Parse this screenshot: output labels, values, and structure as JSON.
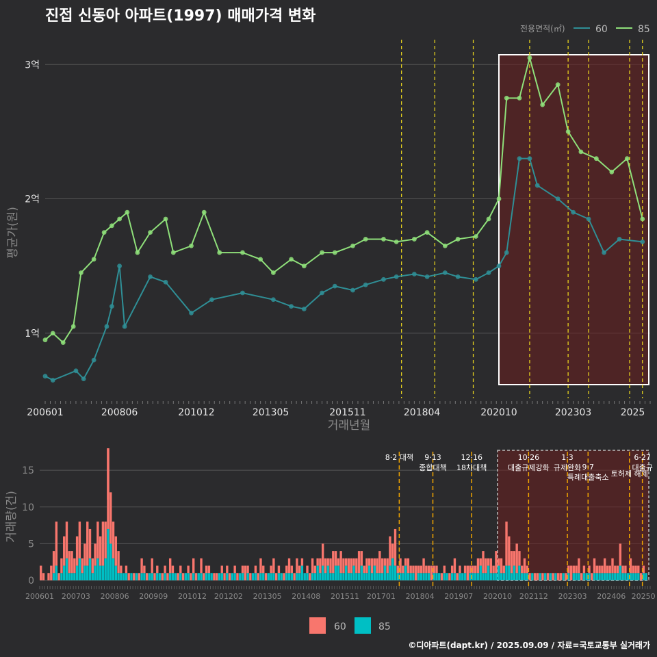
{
  "title": "진접 신동아 아파트(1997) 매매가격 변화",
  "footer": "©디아파트(dapt.kr) / 2025.09.09 / 자료=국토교통부 실거래가",
  "colors": {
    "s60": "#2f8f96",
    "s85": "#8fe07a",
    "bar60": "#f8766d",
    "bar85": "#00bfc4",
    "policy": "#e6d21e",
    "policyBar": "#f0a500",
    "highlight": "#6b1f1f"
  },
  "chart_data": [
    {
      "type": "line",
      "xlabel": "거래년월",
      "ylabel": "평균가(원)",
      "x_range": [
        "2006-01",
        "2025-09"
      ],
      "ylim": [
        0.5,
        3.2
      ],
      "yticks": [
        {
          "v": 1,
          "label": "1억"
        },
        {
          "v": 2,
          "label": "2억"
        },
        {
          "v": 3,
          "label": "3억"
        }
      ],
      "xticks": [
        "200601",
        "200806",
        "201012",
        "201305",
        "201511",
        "201804",
        "202010",
        "202303",
        "2025"
      ],
      "legend_title": "전용면적(㎡)",
      "legend_position": "top-right",
      "highlight_range": [
        "2020-10",
        "2025-09"
      ],
      "policy_lines": [
        "2017-08",
        "2018-09",
        "2019-12",
        "2021-10",
        "2023-01",
        "2023-09",
        "2025-01",
        "2025-06"
      ],
      "series": [
        {
          "name": "60",
          "points": [
            [
              "2006-01",
              0.68
            ],
            [
              "2006-04",
              0.65
            ],
            [
              "2007-01",
              0.72
            ],
            [
              "2007-04",
              0.66
            ],
            [
              "2007-08",
              0.8
            ],
            [
              "2008-01",
              1.05
            ],
            [
              "2008-03",
              1.2
            ],
            [
              "2008-06",
              1.5
            ],
            [
              "2008-08",
              1.05
            ],
            [
              "2009-06",
              1.42
            ],
            [
              "2009-12",
              1.38
            ],
            [
              "2010-10",
              1.15
            ],
            [
              "2011-06",
              1.25
            ],
            [
              "2012-06",
              1.3
            ],
            [
              "2013-06",
              1.25
            ],
            [
              "2014-01",
              1.2
            ],
            [
              "2014-06",
              1.18
            ],
            [
              "2015-01",
              1.3
            ],
            [
              "2015-06",
              1.35
            ],
            [
              "2016-01",
              1.32
            ],
            [
              "2016-06",
              1.36
            ],
            [
              "2017-01",
              1.4
            ],
            [
              "2017-06",
              1.42
            ],
            [
              "2018-01",
              1.44
            ],
            [
              "2018-06",
              1.42
            ],
            [
              "2019-01",
              1.45
            ],
            [
              "2019-06",
              1.42
            ],
            [
              "2020-01",
              1.4
            ],
            [
              "2020-06",
              1.45
            ],
            [
              "2020-10",
              1.5
            ],
            [
              "2021-01",
              1.6
            ],
            [
              "2021-06",
              2.3
            ],
            [
              "2021-10",
              2.3
            ],
            [
              "2022-01",
              2.1
            ],
            [
              "2022-09",
              2.0
            ],
            [
              "2023-03",
              1.9
            ],
            [
              "2023-09",
              1.85
            ],
            [
              "2024-03",
              1.6
            ],
            [
              "2024-09",
              1.7
            ],
            [
              "2025-06",
              1.68
            ]
          ]
        },
        {
          "name": "85",
          "points": [
            [
              "2006-01",
              0.95
            ],
            [
              "2006-04",
              1.0
            ],
            [
              "2006-08",
              0.93
            ],
            [
              "2006-12",
              1.05
            ],
            [
              "2007-03",
              1.45
            ],
            [
              "2007-08",
              1.55
            ],
            [
              "2007-12",
              1.75
            ],
            [
              "2008-03",
              1.8
            ],
            [
              "2008-06",
              1.85
            ],
            [
              "2008-09",
              1.9
            ],
            [
              "2009-01",
              1.6
            ],
            [
              "2009-06",
              1.75
            ],
            [
              "2009-12",
              1.85
            ],
            [
              "2010-03",
              1.6
            ],
            [
              "2010-10",
              1.65
            ],
            [
              "2011-03",
              1.9
            ],
            [
              "2011-09",
              1.6
            ],
            [
              "2012-06",
              1.6
            ],
            [
              "2013-01",
              1.55
            ],
            [
              "2013-06",
              1.45
            ],
            [
              "2014-01",
              1.55
            ],
            [
              "2014-06",
              1.5
            ],
            [
              "2015-01",
              1.6
            ],
            [
              "2015-06",
              1.6
            ],
            [
              "2016-01",
              1.65
            ],
            [
              "2016-06",
              1.7
            ],
            [
              "2017-01",
              1.7
            ],
            [
              "2017-06",
              1.68
            ],
            [
              "2018-01",
              1.7
            ],
            [
              "2018-06",
              1.75
            ],
            [
              "2019-01",
              1.65
            ],
            [
              "2019-06",
              1.7
            ],
            [
              "2020-01",
              1.72
            ],
            [
              "2020-06",
              1.85
            ],
            [
              "2020-10",
              2.0
            ],
            [
              "2021-01",
              2.75
            ],
            [
              "2021-06",
              2.75
            ],
            [
              "2021-10",
              3.05
            ],
            [
              "2022-03",
              2.7
            ],
            [
              "2022-09",
              2.85
            ],
            [
              "2023-01",
              2.5
            ],
            [
              "2023-06",
              2.35
            ],
            [
              "2023-12",
              2.3
            ],
            [
              "2024-06",
              2.2
            ],
            [
              "2024-12",
              2.3
            ],
            [
              "2025-06",
              1.85
            ]
          ]
        }
      ]
    },
    {
      "type": "bar",
      "xlabel": "",
      "ylabel": "거래량(건)",
      "x_range": [
        "2006-01",
        "2025-09"
      ],
      "ylim": [
        0,
        18
      ],
      "yticks": [
        0,
        5,
        10,
        15
      ],
      "xticks": [
        "200601",
        "200703",
        "200806",
        "200909",
        "201012",
        "201202",
        "201305",
        "201408",
        "201511",
        "201701",
        "201804",
        "201907",
        "202010",
        "202112",
        "202303",
        "202406",
        "20250"
      ],
      "stacked": true,
      "highlight_range": [
        "2020-10",
        "2025-09"
      ],
      "series": [
        {
          "name": "60",
          "values_by_year": {
            "2006": [
              2,
              1,
              0,
              1,
              2,
              3,
              6,
              1,
              2,
              4,
              5,
              3
            ],
            "2007": [
              3,
              2,
              4,
              5,
              2,
              3,
              6,
              4,
              2,
              3,
              5,
              4
            ],
            "2008": [
              6,
              5,
              11,
              7,
              5,
              4,
              3,
              1,
              0,
              1,
              1,
              0
            ],
            "2009": [
              1,
              0,
              1,
              2,
              1,
              1,
              0,
              2,
              1,
              1,
              0,
              1
            ],
            "2010": [
              1,
              1,
              2,
              1,
              0,
              1,
              1,
              1,
              0,
              1,
              1,
              2
            ],
            "2011": [
              1,
              0,
              2,
              1,
              1,
              1,
              0,
              1,
              1,
              0,
              1,
              1
            ],
            "2012": [
              1,
              1,
              0,
              1,
              1,
              0,
              1,
              2,
              1,
              1,
              0,
              1
            ],
            "2013": [
              1,
              2,
              1,
              1,
              0,
              1,
              2,
              1,
              1,
              0,
              1,
              1
            ],
            "2014": [
              2,
              1,
              1,
              2,
              1,
              1,
              0,
              1,
              1,
              2,
              1,
              1
            ],
            "2015": [
              2,
              3,
              2,
              1,
              2,
              3,
              2,
              1,
              3,
              2,
              1,
              2
            ],
            "2016": [
              2,
              1,
              2,
              3,
              2,
              1,
              2,
              1,
              2,
              1,
              2,
              3
            ],
            "2017": [
              2,
              1,
              2,
              4,
              2,
              5,
              1,
              2,
              1,
              1,
              2,
              1
            ],
            "2018": [
              1,
              2,
              1,
              1,
              2,
              1,
              1,
              2,
              1,
              1,
              0,
              1
            ],
            "2019": [
              1,
              0,
              1,
              1,
              2,
              1,
              1,
              0,
              1,
              2,
              1,
              1
            ],
            "2020": [
              1,
              2,
              1,
              3,
              2,
              1,
              2,
              1,
              3,
              1,
              2,
              1
            ],
            "2021": [
              6,
              4,
              3,
              2,
              4,
              2,
              1,
              2,
              1,
              1,
              0,
              1
            ],
            "2022": [
              1,
              0,
              1,
              0,
              1,
              0,
              1,
              0,
              1,
              1,
              0,
              1
            ],
            "2023": [
              1,
              2,
              1,
              1,
              2,
              1,
              1,
              0,
              1,
              1,
              2,
              1
            ],
            "2024": [
              1,
              1,
              2,
              1,
              1,
              2,
              1,
              1,
              3,
              1,
              1,
              0
            ],
            "2025": [
              2,
              1,
              1,
              1,
              1,
              1,
              0,
              0,
              0
            ]
          }
        },
        {
          "name": "85",
          "values_by_year": {
            "2006": [
              0,
              0,
              0,
              0,
              0,
              1,
              2,
              0,
              1,
              2,
              3,
              1
            ],
            "2007": [
              1,
              1,
              2,
              3,
              1,
              2,
              2,
              3,
              1,
              2,
              3,
              2
            ],
            "2008": [
              2,
              3,
              7,
              5,
              3,
              2,
              1,
              1,
              1,
              1,
              0,
              1
            ],
            "2009": [
              0,
              1,
              0,
              1,
              1,
              0,
              1,
              1,
              0,
              1,
              1,
              0
            ],
            "2010": [
              1,
              0,
              1,
              1,
              1,
              0,
              1,
              0,
              1,
              1,
              0,
              1
            ],
            "2011": [
              0,
              1,
              1,
              0,
              1,
              1,
              1,
              0,
              0,
              1,
              1,
              0
            ],
            "2012": [
              1,
              0,
              1,
              1,
              0,
              1,
              1,
              0,
              1,
              0,
              1,
              1
            ],
            "2013": [
              0,
              1,
              1,
              0,
              1,
              1,
              1,
              0,
              1,
              1,
              0,
              1
            ],
            "2014": [
              1,
              1,
              0,
              1,
              1,
              2,
              1,
              1,
              0,
              1,
              1,
              2
            ],
            "2015": [
              1,
              2,
              1,
              2,
              1,
              1,
              2,
              2,
              1,
              1,
              2,
              1
            ],
            "2016": [
              1,
              2,
              1,
              1,
              2,
              1,
              1,
              2,
              1,
              2,
              1,
              1
            ],
            "2017": [
              1,
              2,
              1,
              2,
              3,
              2,
              1,
              1,
              1,
              2,
              1,
              1
            ],
            "2018": [
              1,
              0,
              1,
              1,
              1,
              1,
              1,
              0,
              1,
              1,
              1,
              0
            ],
            "2019": [
              1,
              1,
              0,
              1,
              1,
              0,
              1,
              1,
              1,
              0,
              1,
              1
            ],
            "2020": [
              1,
              1,
              2,
              1,
              1,
              2,
              1,
              1,
              1,
              2,
              1,
              1
            ],
            "2021": [
              2,
              2,
              1,
              2,
              1,
              2,
              1,
              1,
              1,
              0,
              1,
              0
            ],
            "2022": [
              0,
              1,
              0,
              1,
              0,
              1,
              0,
              1,
              0,
              0,
              1,
              0
            ],
            "2023": [
              1,
              0,
              1,
              1,
              1,
              0,
              1,
              1,
              1,
              0,
              1,
              1
            ],
            "2024": [
              1,
              1,
              1,
              1,
              1,
              1,
              1,
              1,
              2,
              1,
              1,
              1
            ],
            "2025": [
              1,
              1,
              1,
              1,
              0,
              1,
              1,
              0,
              0
            ]
          }
        }
      ],
      "annotations": [
        {
          "date": "2017-08",
          "lines": [
            "8·2 대책"
          ]
        },
        {
          "date": "2018-09",
          "lines": [
            "9·13",
            "종합대책"
          ]
        },
        {
          "date": "2019-12",
          "lines": [
            "12·16",
            "18차대책"
          ]
        },
        {
          "date": "2021-10",
          "lines": [
            "10·26",
            "대출규제강화"
          ]
        },
        {
          "date": "2023-01",
          "lines": [
            "1·3",
            "규제완화"
          ]
        },
        {
          "date": "2023-09",
          "lines": [
            "9·7",
            "특례대출축소"
          ]
        },
        {
          "date": "2025-01",
          "lines": [
            "토허제 해제"
          ]
        },
        {
          "date": "2025-06",
          "lines": [
            "6·27",
            "대출규"
          ]
        }
      ]
    }
  ]
}
